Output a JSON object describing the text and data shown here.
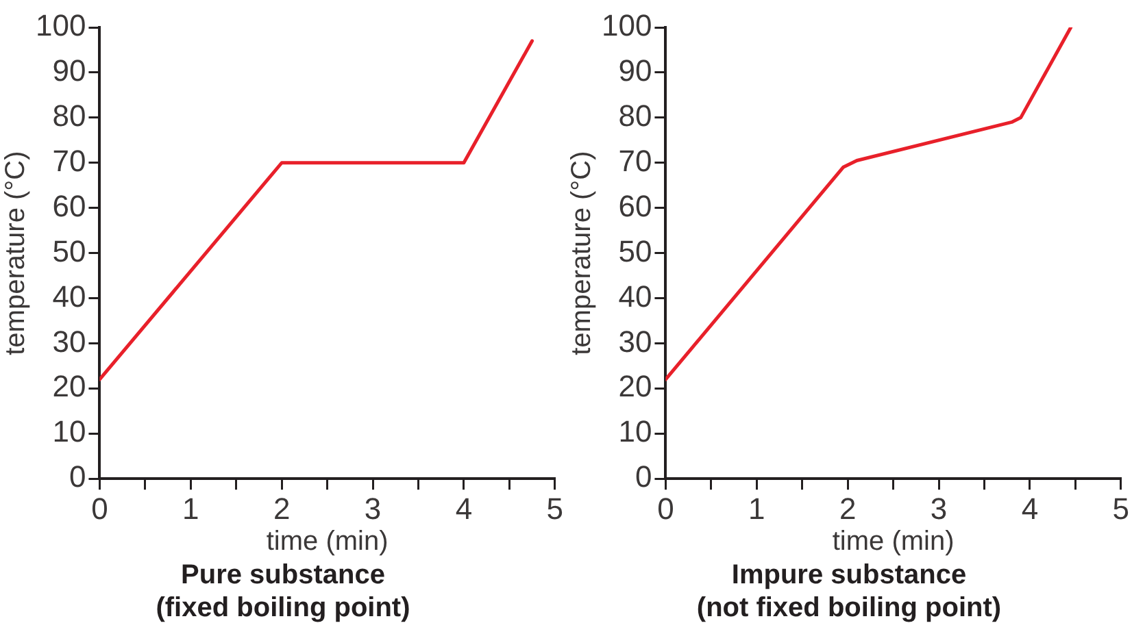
{
  "chart_data": [
    {
      "type": "line",
      "title": "Pure substance",
      "subtitle": "(fixed boiling point)",
      "xlabel": "time (min)",
      "ylabel": "temperature (°C)",
      "series": [
        {
          "color": "#e8202a",
          "x": [
            0,
            2,
            4,
            4.75
          ],
          "values": [
            22,
            70,
            70,
            97
          ]
        }
      ],
      "xlim": [
        0,
        5
      ],
      "xticks": [
        0,
        {
          "value": 0.5,
          "label": null
        },
        1,
        {
          "value": 1.5,
          "label": null
        },
        2,
        {
          "value": 2.5,
          "label": null
        },
        3,
        {
          "value": 3.5,
          "label": null
        },
        4,
        {
          "value": 4.5,
          "label": null
        },
        5
      ],
      "ylim": [
        0,
        100
      ],
      "yticks": [
        0,
        10,
        20,
        30,
        40,
        50,
        60,
        70,
        80,
        90,
        100
      ],
      "grid": false,
      "legend": false,
      "marker": "none",
      "line_style": "solid"
    },
    {
      "type": "line",
      "title": "Impure substance",
      "subtitle": "(not fixed boiling point)",
      "xlabel": "time (min)",
      "ylabel": "temperature (°C)",
      "series": [
        {
          "color": "#e8202a",
          "x": [
            0,
            1.95,
            2.1,
            3.8,
            3.9,
            4.45
          ],
          "values": [
            22,
            69,
            70.5,
            79,
            80,
            100
          ]
        }
      ],
      "xlim": [
        0,
        5
      ],
      "xticks": [
        0,
        {
          "value": 0.5,
          "label": null
        },
        1,
        {
          "value": 1.5,
          "label": null
        },
        2,
        {
          "value": 2.5,
          "label": null
        },
        3,
        {
          "value": 3.5,
          "label": null
        },
        4,
        {
          "value": 4.5,
          "label": null
        },
        5
      ],
      "ylim": [
        0,
        100
      ],
      "yticks": [
        0,
        10,
        20,
        30,
        40,
        50,
        60,
        70,
        80,
        90,
        100
      ],
      "grid": false,
      "legend": false,
      "marker": "none",
      "line_style": "solid"
    }
  ]
}
